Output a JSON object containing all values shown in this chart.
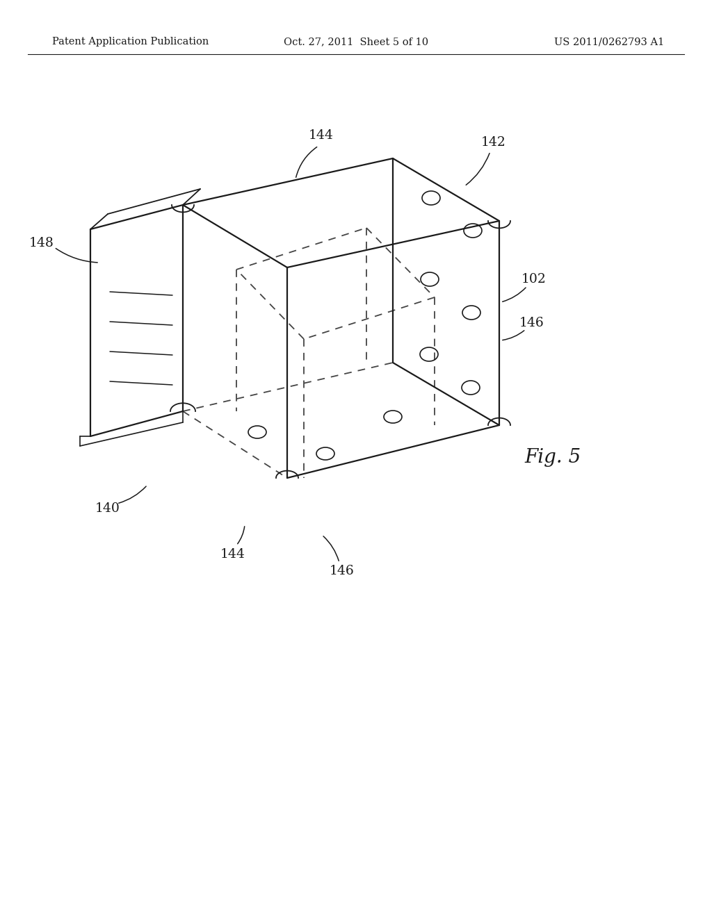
{
  "bg_color": "#ffffff",
  "line_color": "#1a1a1a",
  "header_left": "Patent Application Publication",
  "header_mid": "Oct. 27, 2011  Sheet 5 of 10",
  "header_right": "US 2011/0262793 A1",
  "fig_label": "Fig. 5"
}
